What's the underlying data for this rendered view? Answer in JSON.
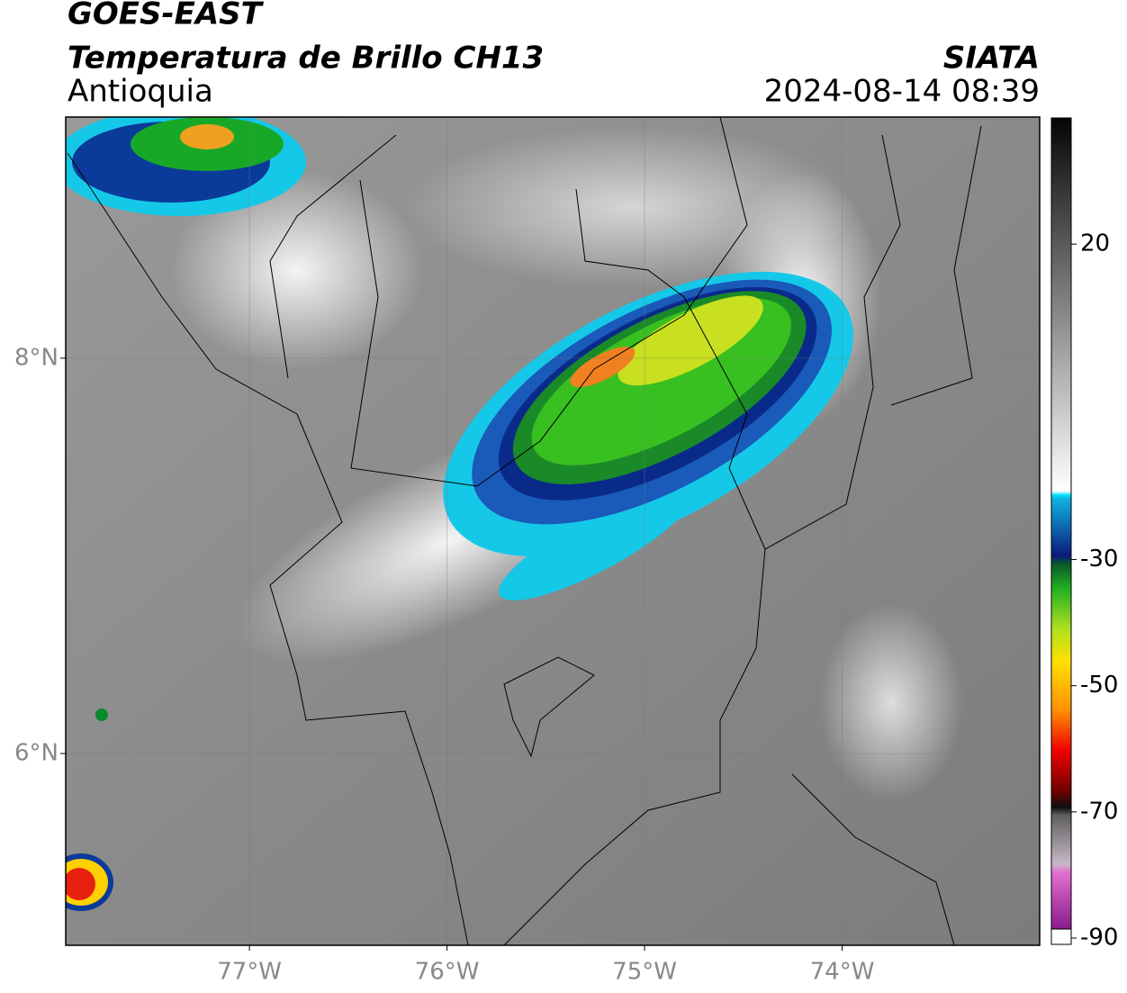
{
  "header": {
    "title": "GOES-EAST",
    "subtitle": "Temperatura de Brillo CH13",
    "region": "Antioquia",
    "source": "SIATA",
    "datetime": "2024-08-14 08:39"
  },
  "map": {
    "xlim": [
      -77.93,
      -73.0
    ],
    "ylim": [
      5.03,
      9.22
    ],
    "xticks": [
      {
        "value": -77,
        "label": "77°W"
      },
      {
        "value": -76,
        "label": "76°W"
      },
      {
        "value": -75,
        "label": "75°W"
      },
      {
        "value": -74,
        "label": "74°W"
      }
    ],
    "yticks": [
      {
        "value": 6,
        "label": "6°N"
      },
      {
        "value": 8,
        "label": "8°N"
      }
    ],
    "grid": true
  },
  "colorbar": {
    "lim": [
      -91,
      40
    ],
    "ticks": [
      -90,
      -70,
      -50,
      -30,
      20
    ]
  }
}
